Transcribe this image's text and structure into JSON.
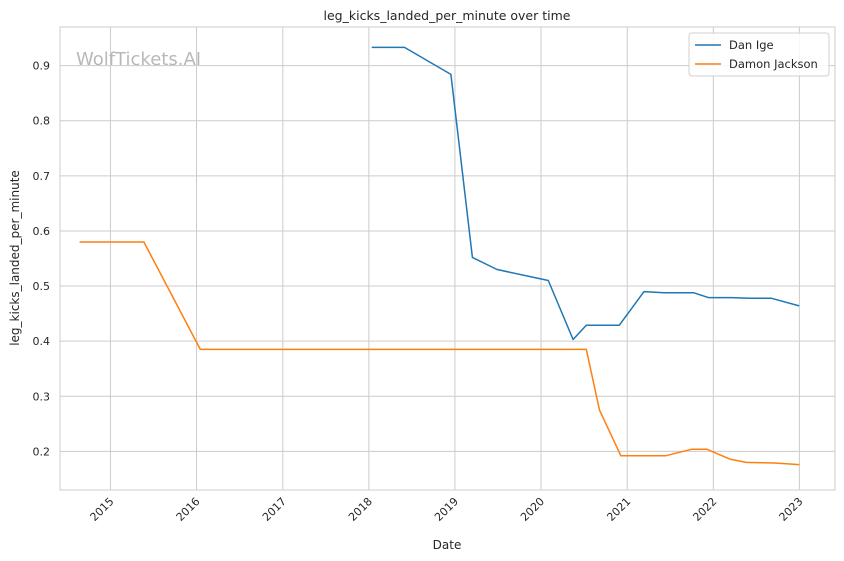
{
  "chart_data": {
    "type": "line",
    "title": "leg_kicks_landed_per_minute over time",
    "xlabel": "Date",
    "ylabel": "leg_kicks_landed_per_minute",
    "watermark": "WolfTickets.AI",
    "xlim": [
      "2014-06-01",
      "2023-06-01"
    ],
    "ylim": [
      0.13,
      0.97
    ],
    "x_ticks": [
      "2015",
      "2016",
      "2017",
      "2018",
      "2019",
      "2020",
      "2021",
      "2022",
      "2023"
    ],
    "y_ticks": [
      0.2,
      0.3,
      0.4,
      0.5,
      0.6,
      0.7,
      0.8,
      0.9
    ],
    "grid": true,
    "legend_position": "top-right",
    "series": [
      {
        "name": "Dan Ige",
        "color": "#1f77b4",
        "points": [
          [
            "2018-01-13",
            0.933
          ],
          [
            "2018-06-01",
            0.933
          ],
          [
            "2018-12-15",
            0.884
          ],
          [
            "2019-03-16",
            0.552
          ],
          [
            "2019-06-29",
            0.53
          ],
          [
            "2020-02-01",
            0.51
          ],
          [
            "2020-05-16",
            0.403
          ],
          [
            "2020-07-11",
            0.429
          ],
          [
            "2020-11-28",
            0.429
          ],
          [
            "2021-03-13",
            0.49
          ],
          [
            "2021-06-05",
            0.488
          ],
          [
            "2021-10-09",
            0.488
          ],
          [
            "2021-12-11",
            0.479
          ],
          [
            "2022-03-19",
            0.479
          ],
          [
            "2022-06-04",
            0.478
          ],
          [
            "2022-09-03",
            0.478
          ],
          [
            "2022-12-31",
            0.464
          ]
        ]
      },
      {
        "name": "Damon Jackson",
        "color": "#ff7f0e",
        "points": [
          [
            "2014-08-23",
            0.58
          ],
          [
            "2015-05-23",
            0.58
          ],
          [
            "2016-01-17",
            0.385
          ],
          [
            "2020-07-11",
            0.385
          ],
          [
            "2020-09-05",
            0.275
          ],
          [
            "2020-12-05",
            0.192
          ],
          [
            "2021-06-12",
            0.192
          ],
          [
            "2021-10-02",
            0.204
          ],
          [
            "2021-12-04",
            0.204
          ],
          [
            "2022-03-12",
            0.186
          ],
          [
            "2022-05-21",
            0.18
          ],
          [
            "2022-09-17",
            0.179
          ],
          [
            "2023-01-01",
            0.176
          ]
        ]
      }
    ]
  }
}
